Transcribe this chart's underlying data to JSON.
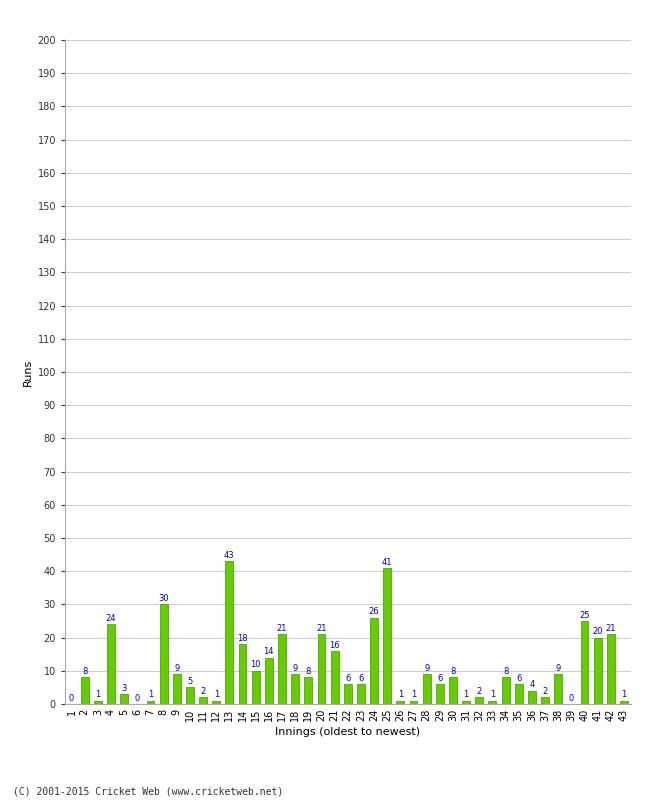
{
  "xlabel": "Innings (oldest to newest)",
  "ylabel": "Runs",
  "values": [
    0,
    8,
    1,
    24,
    3,
    0,
    1,
    30,
    9,
    5,
    2,
    1,
    43,
    18,
    10,
    14,
    21,
    9,
    8,
    21,
    16,
    6,
    6,
    26,
    41,
    1,
    1,
    9,
    6,
    8,
    1,
    2,
    1,
    8,
    6,
    4,
    2,
    9,
    0,
    25,
    20,
    21,
    1
  ],
  "labels": [
    "1",
    "2",
    "3",
    "4",
    "5",
    "6",
    "7",
    "8",
    "9",
    "10",
    "11",
    "12",
    "13",
    "14",
    "15",
    "16",
    "17",
    "18",
    "19",
    "20",
    "21",
    "22",
    "23",
    "24",
    "25",
    "26",
    "27",
    "28",
    "29",
    "30",
    "31",
    "32",
    "33",
    "34",
    "35",
    "36",
    "37",
    "38",
    "39",
    "40",
    "41",
    "42",
    "43"
  ],
  "bar_color": "#66cc00",
  "bar_edge_color": "#339900",
  "label_color": "#0000cc",
  "ylim": [
    0,
    200
  ],
  "yticks": [
    0,
    10,
    20,
    30,
    40,
    50,
    60,
    70,
    80,
    90,
    100,
    110,
    120,
    130,
    140,
    150,
    160,
    170,
    180,
    190,
    200
  ],
  "background_color": "#ffffff",
  "grid_color": "#cccccc",
  "footer": "(C) 2001-2015 Cricket Web (www.cricketweb.net)",
  "label_fontsize": 6,
  "axis_label_fontsize": 8,
  "tick_fontsize": 7,
  "bar_width": 0.6
}
